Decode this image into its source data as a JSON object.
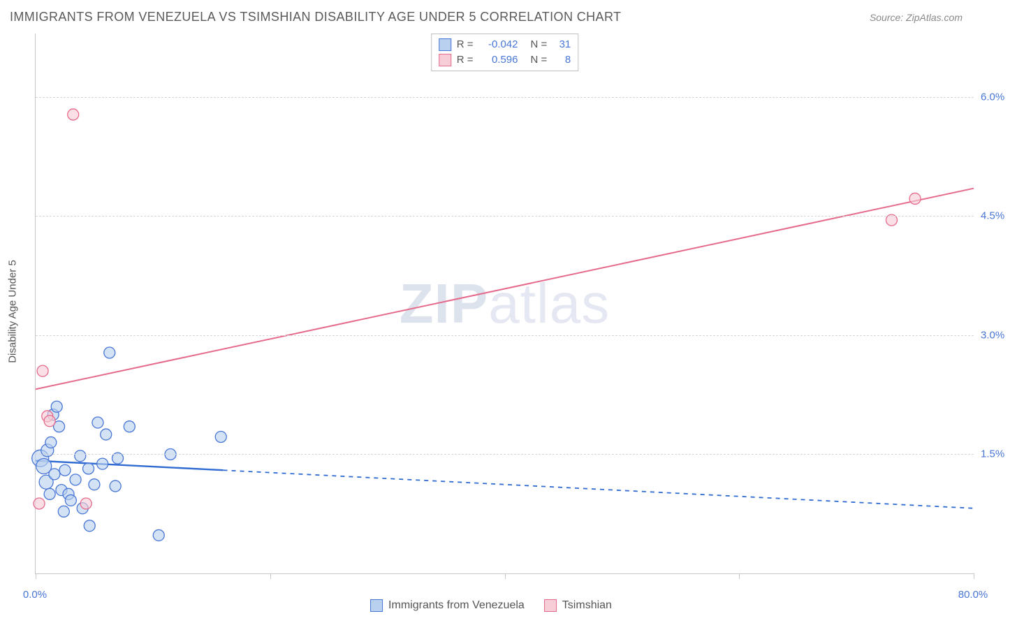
{
  "header": {
    "title": "IMMIGRANTS FROM VENEZUELA VS TSIMSHIAN DISABILITY AGE UNDER 5 CORRELATION CHART",
    "source": "Source: ZipAtlas.com"
  },
  "chart": {
    "type": "scatter",
    "ylabel": "Disability Age Under 5",
    "xlim": [
      0,
      80
    ],
    "ylim": [
      0,
      6.8
    ],
    "xtick_positions": [
      0,
      20,
      40,
      60,
      80
    ],
    "xtick_labels": [
      "0.0%",
      "",
      "",
      "",
      "80.0%"
    ],
    "ytick_positions": [
      1.5,
      3.0,
      4.5,
      6.0
    ],
    "ytick_labels": [
      "1.5%",
      "3.0%",
      "4.5%",
      "6.0%"
    ],
    "background_color": "#ffffff",
    "grid_color": "#d6d6d6",
    "axis_color": "#c7c7c7",
    "tick_label_color": "#4876d6",
    "watermark": "ZIPatlas",
    "legend_top": [
      {
        "swatch_fill": "#b9d1ef",
        "swatch_stroke": "#4876d6",
        "r_label": "R =",
        "r_value": "-0.042",
        "n_label": "N =",
        "n_value": "31"
      },
      {
        "swatch_fill": "#f7cdd7",
        "swatch_stroke": "#e56a8b",
        "r_label": "R =",
        "r_value": "0.596",
        "n_label": "N =",
        "n_value": "8"
      }
    ],
    "legend_bottom": [
      {
        "swatch_fill": "#b9d1ef",
        "swatch_stroke": "#4876d6",
        "label": "Immigrants from Venezuela"
      },
      {
        "swatch_fill": "#f7cdd7",
        "swatch_stroke": "#e56a8b",
        "label": "Tsimshian"
      }
    ],
    "series": [
      {
        "name": "Immigrants from Venezuela",
        "marker_fill": "#b9d1ef",
        "marker_stroke": "#4876d6",
        "marker_fill_opacity": 0.62,
        "marker_r": 8,
        "line_color": "#2f6bd1",
        "line_width": 2.4,
        "line_solid_xmax": 16,
        "dash_pattern": "6,6",
        "regression": {
          "x1": 0,
          "y1": 1.42,
          "x2": 80,
          "y2": 0.82
        },
        "points": [
          {
            "x": 0.4,
            "y": 1.45,
            "r": 12
          },
          {
            "x": 0.7,
            "y": 1.35,
            "r": 11
          },
          {
            "x": 0.9,
            "y": 1.15,
            "r": 10
          },
          {
            "x": 1.0,
            "y": 1.55,
            "r": 9
          },
          {
            "x": 1.2,
            "y": 1.0,
            "r": 8
          },
          {
            "x": 1.3,
            "y": 1.65,
            "r": 8
          },
          {
            "x": 1.5,
            "y": 2.0,
            "r": 8
          },
          {
            "x": 1.6,
            "y": 1.25,
            "r": 8
          },
          {
            "x": 1.8,
            "y": 2.1,
            "r": 8
          },
          {
            "x": 2.0,
            "y": 1.85,
            "r": 8
          },
          {
            "x": 2.2,
            "y": 1.05,
            "r": 8
          },
          {
            "x": 2.4,
            "y": 0.78,
            "r": 8
          },
          {
            "x": 2.5,
            "y": 1.3,
            "r": 8
          },
          {
            "x": 2.8,
            "y": 1.0,
            "r": 8
          },
          {
            "x": 3.0,
            "y": 0.92,
            "r": 8
          },
          {
            "x": 3.4,
            "y": 1.18,
            "r": 8
          },
          {
            "x": 3.8,
            "y": 1.48,
            "r": 8
          },
          {
            "x": 4.0,
            "y": 0.82,
            "r": 8
          },
          {
            "x": 4.5,
            "y": 1.32,
            "r": 8
          },
          {
            "x": 4.6,
            "y": 0.6,
            "r": 8
          },
          {
            "x": 5.0,
            "y": 1.12,
            "r": 8
          },
          {
            "x": 5.3,
            "y": 1.9,
            "r": 8
          },
          {
            "x": 5.7,
            "y": 1.38,
            "r": 8
          },
          {
            "x": 6.0,
            "y": 1.75,
            "r": 8
          },
          {
            "x": 6.3,
            "y": 2.78,
            "r": 8
          },
          {
            "x": 6.8,
            "y": 1.1,
            "r": 8
          },
          {
            "x": 7.0,
            "y": 1.45,
            "r": 8
          },
          {
            "x": 8.0,
            "y": 1.85,
            "r": 8
          },
          {
            "x": 10.5,
            "y": 0.48,
            "r": 8
          },
          {
            "x": 11.5,
            "y": 1.5,
            "r": 8
          },
          {
            "x": 15.8,
            "y": 1.72,
            "r": 8
          }
        ]
      },
      {
        "name": "Tsimshian",
        "marker_fill": "#f7cdd7",
        "marker_stroke": "#e56a8b",
        "marker_fill_opacity": 0.62,
        "marker_r": 8,
        "line_color": "#e56a8b",
        "line_width": 2.0,
        "line_solid_xmax": 80,
        "dash_pattern": "",
        "regression": {
          "x1": 0,
          "y1": 2.32,
          "x2": 80,
          "y2": 4.85
        },
        "points": [
          {
            "x": 0.3,
            "y": 0.88,
            "r": 8
          },
          {
            "x": 0.6,
            "y": 2.55,
            "r": 8
          },
          {
            "x": 1.0,
            "y": 1.98,
            "r": 8
          },
          {
            "x": 1.2,
            "y": 1.92,
            "r": 8
          },
          {
            "x": 3.2,
            "y": 5.78,
            "r": 8
          },
          {
            "x": 4.3,
            "y": 0.88,
            "r": 8
          },
          {
            "x": 73.0,
            "y": 4.45,
            "r": 8
          },
          {
            "x": 75.0,
            "y": 4.72,
            "r": 8
          }
        ]
      }
    ]
  }
}
